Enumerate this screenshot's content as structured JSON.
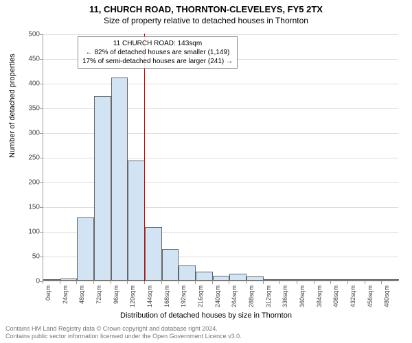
{
  "chart": {
    "type": "histogram",
    "title_line1": "11, CHURCH ROAD, THORNTON-CLEVELEYS, FY5 2TX",
    "title_line2": "Size of property relative to detached houses in Thornton",
    "ylabel": "Number of detached properties",
    "xlabel": "Distribution of detached houses by size in Thornton",
    "background_color": "#ffffff",
    "axis_color": "#999999",
    "grid_color": "#dddddd",
    "bar_fill": "#d2e3f3",
    "bar_border": "#666666",
    "marker_color": "#cc0000",
    "text_color": "#000000",
    "tick_color": "#444444",
    "title_fontsize": 13,
    "subtitle_fontsize": 12,
    "label_fontsize": 11,
    "tick_fontsize": 10,
    "xtick_fontsize": 9,
    "ylim": [
      0,
      500
    ],
    "ytick_step": 50,
    "bin_width_sqm": 24,
    "categories": [
      "0sqm",
      "24sqm",
      "48sqm",
      "72sqm",
      "96sqm",
      "120sqm",
      "144sqm",
      "168sqm",
      "192sqm",
      "216sqm",
      "240sqm",
      "264sqm",
      "288sqm",
      "312sqm",
      "336sqm",
      "360sqm",
      "384sqm",
      "408sqm",
      "432sqm",
      "456sqm",
      "480sqm"
    ],
    "values": [
      2,
      4,
      128,
      373,
      411,
      243,
      109,
      64,
      31,
      18,
      10,
      14,
      8,
      3,
      2,
      1,
      1,
      1,
      0,
      0,
      0
    ],
    "marker_sqm": 143,
    "annotation": {
      "line1": "11 CHURCH ROAD: 143sqm",
      "line2": "← 82% of detached houses are smaller (1,149)",
      "line3": "17% of semi-detached houses are larger (241) →"
    },
    "copyright_line1": "Contains HM Land Registry data © Crown copyright and database right 2024.",
    "copyright_line2": "Contains public sector information licensed under the Open Government Licence v3.0."
  }
}
